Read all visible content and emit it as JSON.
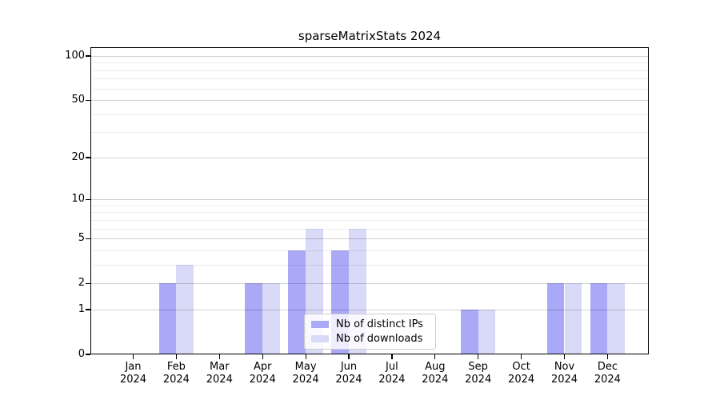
{
  "title": "sparseMatrixStats 2024",
  "chart_data": {
    "type": "bar",
    "title": "sparseMatrixStats 2024",
    "categories": [
      "Jan 2024",
      "Feb 2024",
      "Mar 2024",
      "Apr 2024",
      "May 2024",
      "Jun 2024",
      "Jul 2024",
      "Aug 2024",
      "Sep 2024",
      "Oct 2024",
      "Nov 2024",
      "Dec 2024"
    ],
    "x_months": [
      "Jan",
      "Feb",
      "Mar",
      "Apr",
      "May",
      "Jun",
      "Jul",
      "Aug",
      "Sep",
      "Oct",
      "Nov",
      "Dec"
    ],
    "x_year": "2024",
    "series": [
      {
        "name": "Nb of distinct IPs",
        "color": "#a9a9f7",
        "values": [
          0,
          2,
          0,
          2,
          4,
          4,
          0,
          0,
          1,
          0,
          2,
          2
        ]
      },
      {
        "name": "Nb of downloads",
        "color": "#d9d9f8",
        "values": [
          0,
          3,
          0,
          2,
          6,
          6,
          0,
          0,
          1,
          0,
          2,
          2
        ]
      }
    ],
    "xlabel": "",
    "ylabel": "",
    "y_scale": "log10(1+x)",
    "y_major_ticks": [
      0,
      1,
      2,
      5,
      10,
      20,
      50,
      100
    ],
    "y_minor_ticks": [
      3,
      4,
      6,
      7,
      8,
      9,
      30,
      40,
      60,
      70,
      80,
      90
    ],
    "ylim": [
      0,
      116
    ],
    "grid": true,
    "legend_position": "lower center"
  }
}
